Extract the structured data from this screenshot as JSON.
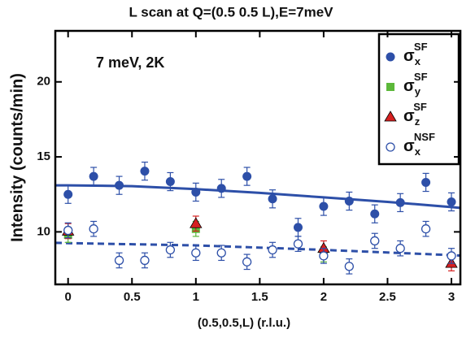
{
  "chart_data": {
    "type": "scatter",
    "title": "L scan at Q=(0.5 0.5 L),E=7meV",
    "x_label": "(0.5,0.5,L) (r.l.u.)",
    "y_label": "Intensity (counts/min)",
    "annotation": "7 meV, 2K",
    "xlim": [
      -0.1,
      3.07
    ],
    "ylim": [
      6.5,
      23.4
    ],
    "xticks": [
      0,
      0.5,
      1,
      1.5,
      2,
      2.5,
      3
    ],
    "yticks": [
      10,
      15,
      20
    ],
    "series": [
      {
        "name": "σ",
        "name_sub": "x",
        "name_sup": "SF",
        "color": "#2d4fa8",
        "marker": "circle",
        "x": [
          0,
          0.2,
          0.4,
          0.6,
          0.8,
          1,
          1.2,
          1.4,
          1.6,
          1.8,
          2,
          2.2,
          2.4,
          2.6,
          2.8,
          3
        ],
        "values": [
          12.5,
          13.7,
          13.1,
          14.05,
          13.35,
          12.65,
          12.9,
          13.7,
          12.2,
          10.3,
          11.7,
          12.05,
          11.2,
          11.95,
          13.3,
          12.0
        ],
        "errors": [
          0.6,
          0.6,
          0.6,
          0.6,
          0.6,
          0.6,
          0.6,
          0.6,
          0.6,
          0.6,
          0.6,
          0.6,
          0.6,
          0.6,
          0.6,
          0.6
        ]
      },
      {
        "name": "σ",
        "name_sub": "y",
        "name_sup": "SF",
        "color": "#5cb83a",
        "marker": "square",
        "x": [
          0,
          1,
          2
        ],
        "values": [
          9.8,
          10.2,
          8.5
        ],
        "errors": [
          0.5,
          0.5,
          0.5
        ]
      },
      {
        "name": "σ",
        "name_sub": "z",
        "name_sup": "SF",
        "color": "#d62020",
        "marker": "triangle",
        "x": [
          0,
          1,
          2,
          3
        ],
        "values": [
          10.05,
          10.55,
          8.9,
          7.9
        ],
        "errors": [
          0.5,
          0.5,
          0.5,
          0.5
        ]
      },
      {
        "name": "σ",
        "name_sub": "x",
        "name_sup": "NSF",
        "color": "#2d4fa8",
        "marker": "open-circle",
        "x": [
          0,
          0.2,
          0.4,
          0.6,
          0.8,
          1,
          1.2,
          1.4,
          1.6,
          1.8,
          2,
          2.2,
          2.4,
          2.6,
          2.8,
          3
        ],
        "values": [
          10.1,
          10.2,
          8.1,
          8.1,
          8.8,
          8.6,
          8.6,
          8.0,
          8.8,
          9.2,
          8.4,
          7.7,
          9.4,
          8.9,
          10.2,
          8.4
        ],
        "errors": [
          0.5,
          0.5,
          0.5,
          0.5,
          0.5,
          0.5,
          0.5,
          0.5,
          0.5,
          0.5,
          0.5,
          0.5,
          0.5,
          0.5,
          0.5,
          0.5
        ]
      }
    ],
    "fits": [
      {
        "color": "#2d4fa8",
        "dashed": false,
        "x": [
          -0.1,
          0,
          0.5,
          1,
          1.5,
          2,
          2.5,
          3,
          3.07
        ],
        "values": [
          13.1,
          13.1,
          13.05,
          12.85,
          12.6,
          12.3,
          12.0,
          11.65,
          11.6
        ]
      },
      {
        "color": "#2d4fa8",
        "dashed": true,
        "x": [
          -0.1,
          0,
          1,
          2,
          3,
          3.07
        ],
        "values": [
          9.27,
          9.25,
          9.1,
          8.8,
          8.45,
          8.42
        ]
      }
    ]
  }
}
